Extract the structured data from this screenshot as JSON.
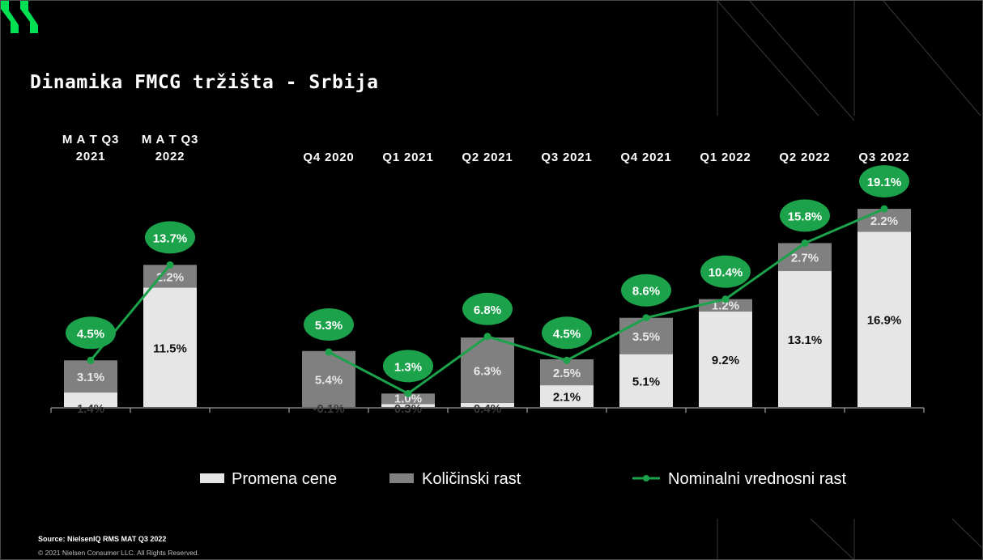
{
  "title": "Dinamika FMCG tržišta - Srbija",
  "source": "Source: NielsenIQ RMS MAT Q3 2022",
  "copyright": "© 2021 Nielsen Consumer LLC. All Rights Reserved.",
  "colors": {
    "background": "#000000",
    "price": "#e6e6e6",
    "volume": "#808080",
    "nominal": "#1ba24a",
    "logo": "#00e052"
  },
  "icons": {
    "logo": "nielseniq-logo"
  },
  "chart_data": {
    "type": "bar",
    "stacked": true,
    "categories": [
      "M A T Q3\n2021",
      "M A T Q3\n2022",
      "",
      "Q4 2020",
      "Q1 2021",
      "Q2 2021",
      "Q3 2021",
      "Q4 2021",
      "Q1 2022",
      "Q2 2022",
      "Q3 2022"
    ],
    "category_labels": [
      [
        "M A T Q3",
        "2021"
      ],
      [
        "M A T Q3",
        "2022"
      ],
      [],
      [
        "Q4 2020"
      ],
      [
        "Q1 2021"
      ],
      [
        "Q2 2021"
      ],
      [
        "Q3 2021"
      ],
      [
        "Q4 2021"
      ],
      [
        "Q1 2022"
      ],
      [
        "Q2 2022"
      ],
      [
        "Q3 2022"
      ]
    ],
    "series": [
      {
        "name": "Promena cene",
        "type": "bar",
        "values": [
          1.4,
          11.5,
          null,
          -0.1,
          0.3,
          0.4,
          2.1,
          5.1,
          9.2,
          13.1,
          16.9
        ],
        "labels": [
          "1.4%",
          "11.5%",
          "",
          "-0.1%",
          "0.3%",
          "0.4%",
          "2.1%",
          "5.1%",
          "9.2%",
          "13.1%",
          "16.9%"
        ]
      },
      {
        "name": "Količinski rast",
        "type": "bar",
        "values": [
          3.1,
          2.2,
          null,
          5.4,
          1.0,
          6.3,
          2.5,
          3.5,
          1.2,
          2.7,
          2.2
        ],
        "labels": [
          "3.1%",
          "2.2%",
          "",
          "5.4%",
          "1.0%",
          "6.3%",
          "2.5%",
          "3.5%",
          "1.2%",
          "2.7%",
          "2.2%"
        ]
      },
      {
        "name": "Nominalni vrednosni rast",
        "type": "line",
        "values": [
          4.5,
          13.7,
          null,
          5.3,
          1.3,
          6.8,
          4.5,
          8.6,
          10.4,
          15.8,
          19.1
        ],
        "labels": [
          "4.5%",
          "13.7%",
          "",
          "5.3%",
          "1.3%",
          "6.8%",
          "4.5%",
          "8.6%",
          "10.4%",
          "15.8%",
          "19.1%"
        ]
      }
    ],
    "line_segments": [
      [
        0,
        1
      ],
      [
        3,
        10
      ]
    ],
    "ylim": [
      -0.5,
      22
    ],
    "grid": false,
    "legend": "bottom",
    "xlabel": "",
    "ylabel": ""
  }
}
